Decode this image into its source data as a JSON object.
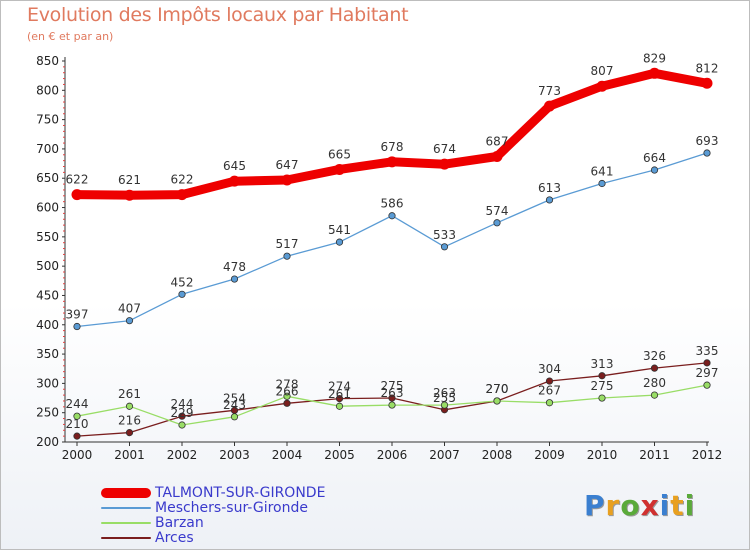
{
  "title": "Evolution des Impôts locaux par Habitant",
  "subtitle": "(en € et par an)",
  "brand": {
    "text": "Proxiti",
    "colors": [
      "#3a7fd0",
      "#e8a020",
      "#5aaa3a",
      "#d03030",
      "#3a7fd0",
      "#e8a020",
      "#5aaa3a"
    ]
  },
  "chart_data": {
    "type": "line",
    "title": "Evolution des Impôts locaux par Habitant",
    "subtitle": "(en € et par an)",
    "x": [
      2000,
      2001,
      2002,
      2003,
      2004,
      2005,
      2006,
      2007,
      2008,
      2009,
      2010,
      2011,
      2012
    ],
    "ylim": [
      200,
      850
    ],
    "yticks": [
      200,
      250,
      300,
      350,
      400,
      450,
      500,
      550,
      600,
      650,
      700,
      750,
      800,
      850
    ],
    "grid": false,
    "legend_position": "bottom-left",
    "series": [
      {
        "name": "TALMONT-SUR-GIRONDE",
        "color": "#ee0000",
        "values": [
          622,
          621,
          622,
          645,
          647,
          665,
          678,
          674,
          687,
          773,
          807,
          829,
          812
        ]
      },
      {
        "name": "Meschers-sur-Gironde",
        "color": "#5a9bd4",
        "values": [
          397,
          407,
          452,
          478,
          517,
          541,
          586,
          533,
          574,
          613,
          641,
          664,
          693
        ]
      },
      {
        "name": "Barzan",
        "color": "#99dd66",
        "values": [
          244,
          261,
          229,
          243,
          278,
          261,
          263,
          263,
          270,
          267,
          275,
          280,
          297
        ]
      },
      {
        "name": "Arces",
        "color": "#7a1e1e",
        "values": [
          210,
          216,
          244,
          254,
          266,
          274,
          275,
          255,
          270,
          304,
          313,
          326,
          335
        ]
      }
    ]
  }
}
